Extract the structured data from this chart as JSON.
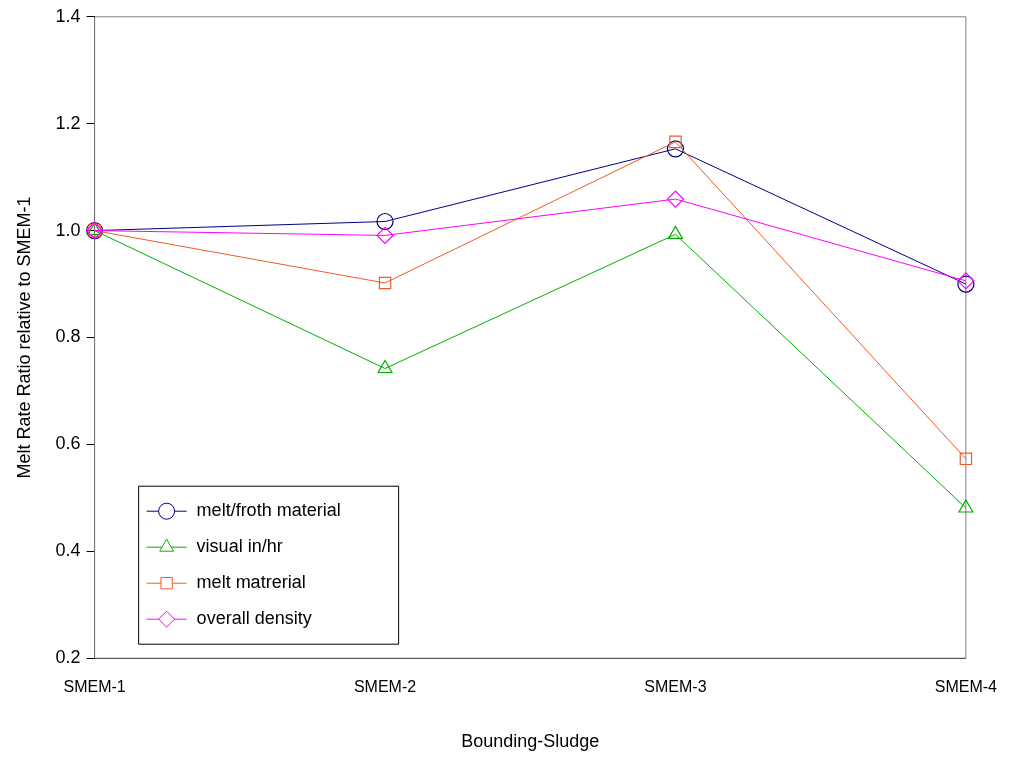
{
  "chart_data": {
    "type": "line",
    "xlabel": "Bounding-Sludge",
    "ylabel": "Melt Rate Ratio relative to SMEM-1",
    "categories": [
      "SMEM-1",
      "SMEM-2",
      "SMEM-3",
      "SMEM-4"
    ],
    "series": [
      {
        "name": "melt/froth material",
        "color": "#000080",
        "marker": "circle",
        "values": [
          1.0,
          1.017,
          1.153,
          0.9
        ]
      },
      {
        "name": "visual in/hr",
        "color": "#00b000",
        "marker": "triangle",
        "values": [
          1.0,
          0.742,
          0.993,
          0.481
        ]
      },
      {
        "name": "melt matrerial",
        "color": "#f05a28",
        "marker": "square",
        "values": [
          1.0,
          0.902,
          1.166,
          0.573
        ]
      },
      {
        "name": "overall density",
        "color": "#ff00ff",
        "marker": "diamond",
        "values": [
          1.0,
          0.991,
          1.059,
          0.906
        ]
      }
    ],
    "ylim": [
      0.2,
      1.4
    ],
    "yticks": [
      0.2,
      0.4,
      0.6,
      0.8,
      {
        "value": 1,
        "label": "1.0"
      },
      1.2,
      1.4
    ],
    "grid": false,
    "legend": "bottom left",
    "line_style": "solid"
  }
}
